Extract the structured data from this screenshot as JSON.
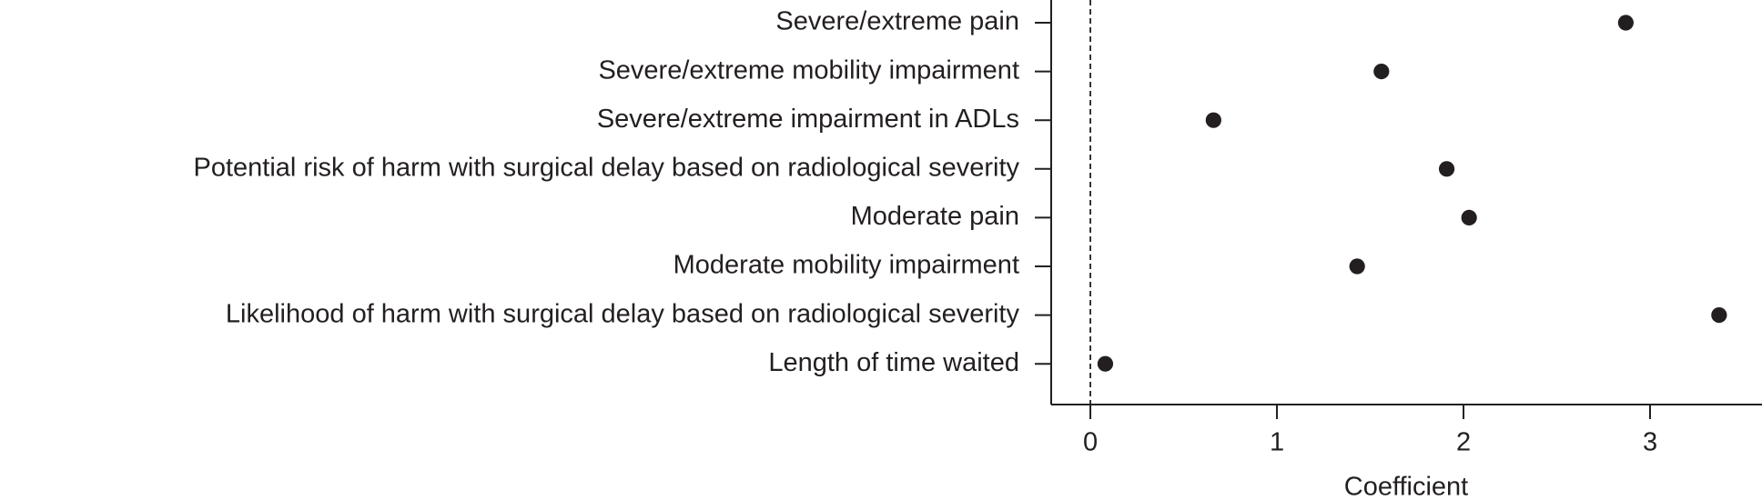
{
  "chart_data": {
    "type": "dot",
    "categories": [
      "Severe/extreme pain",
      "Severe/extreme mobility impairment",
      "Severe/extreme impairment in ADLs",
      "Potential risk of harm with surgical delay based on radiological severity",
      "Moderate pain",
      "Moderate mobility impairment",
      "Likelihood of harm with surgical delay based on radiological severity",
      "Length of time waited"
    ],
    "values": [
      2.87,
      1.56,
      0.66,
      1.91,
      2.03,
      1.43,
      3.37,
      0.08
    ],
    "color": "#231f20",
    "xlabel": "Coefficient",
    "xlim": [
      -0.21,
      3.6
    ],
    "xticks": [
      0,
      1,
      2,
      3
    ],
    "reference_line": 0
  }
}
